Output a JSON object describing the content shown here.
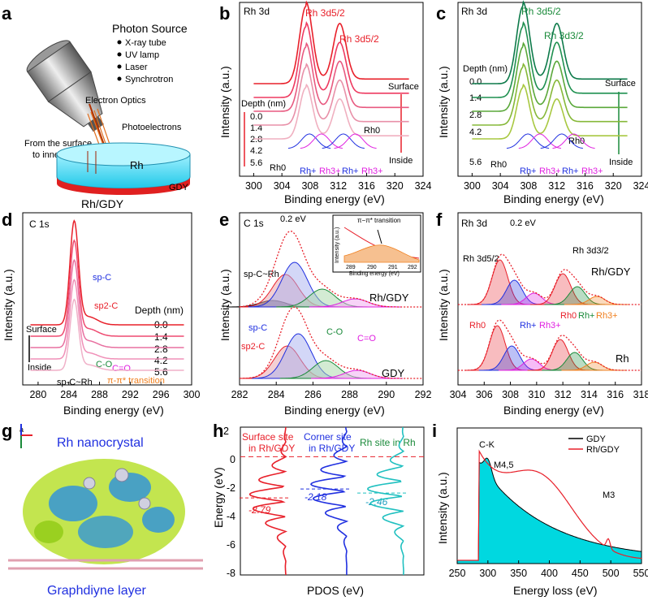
{
  "colors": {
    "red": "#e8202a",
    "pink": "#e8407a",
    "magenta": "#e020e0",
    "blue": "#2030e0",
    "green": "#1a8a3a",
    "darkgreen": "#0d7a4a",
    "orange": "#f08020",
    "cyan": "#20c0c0",
    "fill_cyan": "#00d8e0",
    "gdy_fill": "#00e0e8"
  },
  "panels": {
    "a": {
      "label": "a",
      "source_title": "Photon Source",
      "sources": [
        "X-ray tube",
        "UV lamp",
        "Laser",
        "Synchrotron"
      ],
      "optics": "Electron Optics",
      "photoelectrons": "Photoelectrons",
      "surface_note_1": "From the surface",
      "surface_note_2": "to inner part",
      "rh": "Rh",
      "gdy": "GDY",
      "caption": "Rh/GDY"
    },
    "b": {
      "label": "b",
      "corner_title": "Rh 3d",
      "peak1": "Rh 3d5/2",
      "peak2": "Rh 3d5/2",
      "depth_title": "Depth (nm)",
      "depths": [
        "0.0",
        "1.4",
        "2.8",
        "4.2",
        "5.6"
      ],
      "surface": "Surface",
      "inside": "Inside",
      "rh0_left": "Rh0",
      "rh0_right": "Rh0",
      "components": [
        "Rh+",
        "Rh3+",
        "Rh+",
        "Rh3+"
      ]
    },
    "c": {
      "label": "c",
      "corner_title": "Rh 3d",
      "peak1": "Rh 3d5/2",
      "peak2": "Rh 3d3/2",
      "depth_title": "Depth (nm)",
      "depths": [
        "0.0",
        "1.4",
        "2.8",
        "4.2",
        "5.6"
      ],
      "surface": "Surface",
      "inside": "Inside",
      "rh0_left": "Rh0",
      "rh0_right": "Rh0",
      "components": [
        "Rh+",
        "Rh3+",
        "Rh+",
        "Rh3+"
      ]
    },
    "d": {
      "label": "d",
      "corner_title": "C 1s",
      "depth_title": "Depth (nm)",
      "depths": [
        "0.0",
        "1.4",
        "2.8",
        "4.2",
        "5.6"
      ],
      "surface": "Surface",
      "inside": "Inside",
      "sp_c": "sp-C",
      "sp2_c": "sp2-C",
      "c_o": "C-O",
      "c_eq_o": "C=O",
      "sp_c_rh": "sp-C~Rh",
      "pi_pi": "π-π* transition"
    },
    "e": {
      "label": "e",
      "corner_title": "C 1s",
      "shift": "0.2 eV",
      "inset_title": "π−π* transition",
      "inset_ylabel": "Intensity (a.u.)",
      "inset_xlabel": "Binding energy (eV)",
      "inset_ticks": [
        "289",
        "290",
        "291",
        "292"
      ],
      "sp_c_rh": "sp-C~Rh",
      "sp_c": "sp-C",
      "sp2_c": "sp2-C",
      "c_o": "C-O",
      "c_eq_o": "C=O",
      "upper_sample": "Rh/GDY",
      "lower_sample": "GDY"
    },
    "f": {
      "label": "f",
      "corner_title": "Rh 3d",
      "shift": "0.2 eV",
      "peak1": "Rh 3d5/2",
      "peak2": "Rh 3d3/2",
      "upper_sample": "Rh/GDY",
      "lower_sample": "Rh",
      "components": [
        "Rh0",
        "Rh+",
        "Rh3+",
        "Rh0",
        "Rh+",
        "Rh3+"
      ]
    },
    "g": {
      "label": "g",
      "axis_label": "a",
      "title": "Rh nanocrystal",
      "bottom": "Graphdiyne layer"
    },
    "h": {
      "label": "h",
      "site1": "Surface site in Rh/GDY",
      "site1_a": "Surface site",
      "site1_b": "in Rh/GDY",
      "site2_a": "Corner site",
      "site2_b": "in Rh/GDY",
      "site3": "Rh site in Rh",
      "ylabel": "Energy (eV)",
      "xlabel": "PDOS (eV)",
      "d_centers": [
        "-2.79",
        "-2.18",
        "-2.46"
      ],
      "yticks": [
        "2",
        "0",
        "-2",
        "-4",
        "-6",
        "-8"
      ]
    },
    "i": {
      "label": "i",
      "legend": [
        "GDY",
        "Rh/GDY"
      ],
      "ck": "C-K",
      "m45": "M4,5",
      "m3": "M3",
      "ylabel": "Intensity (a.u.)",
      "xlabel": "Energy loss (eV)"
    }
  },
  "chart_data": [
    {
      "panel": "b",
      "type": "line",
      "title": "Rh 3d",
      "xlabel": "Binding energy (eV)",
      "ylabel": "Intensity (a.u.)",
      "xlim": [
        298,
        324
      ],
      "xticks": [
        300,
        304,
        308,
        312,
        316,
        320,
        324
      ],
      "series": [
        {
          "name": "0.0",
          "peaks": [
            307.4,
            312.2
          ]
        },
        {
          "name": "1.4",
          "peaks": [
            307.4,
            312.2
          ]
        },
        {
          "name": "2.8",
          "peaks": [
            307.4,
            312.2
          ]
        },
        {
          "name": "4.2",
          "peaks": [
            307.4,
            312.2
          ]
        },
        {
          "name": "5.6",
          "peaks": [
            307.4,
            312.2
          ]
        }
      ]
    },
    {
      "panel": "c",
      "type": "line",
      "title": "Rh 3d",
      "xlabel": "Binding energy (eV)",
      "ylabel": "Intensity (a.u.)",
      "xlim": [
        298,
        324
      ],
      "xticks": [
        300,
        304,
        308,
        312,
        316,
        320,
        324
      ],
      "series": [
        {
          "name": "0.0",
          "peaks": [
            307.2,
            312.0
          ]
        },
        {
          "name": "1.4",
          "peaks": [
            307.2,
            312.0
          ]
        },
        {
          "name": "2.8",
          "peaks": [
            307.2,
            312.0
          ]
        },
        {
          "name": "4.2",
          "peaks": [
            307.2,
            312.0
          ]
        },
        {
          "name": "5.6",
          "peaks": [
            307.2,
            312.0
          ]
        }
      ]
    },
    {
      "panel": "d",
      "type": "line",
      "title": "C 1s",
      "xlabel": "Binding energy (eV)",
      "ylabel": "Intensity (a.u.)",
      "xlim": [
        278,
        300
      ],
      "xticks": [
        280,
        284,
        288,
        292,
        296,
        300
      ],
      "series": [
        {
          "name": "0.0",
          "peak": 284.7
        },
        {
          "name": "1.4",
          "peak": 284.7
        },
        {
          "name": "2.8",
          "peak": 284.7
        },
        {
          "name": "4.2",
          "peak": 284.7
        },
        {
          "name": "5.6",
          "peak": 284.7
        }
      ]
    },
    {
      "panel": "e",
      "type": "line",
      "title": "C 1s",
      "xlabel": "Binding energy (eV)",
      "ylabel": "Intensity (a.u.)",
      "xlim": [
        282,
        292
      ],
      "xticks": [
        282,
        284,
        286,
        288,
        290,
        292
      ],
      "series": [
        {
          "name": "Rh/GDY",
          "components": {
            "sp-C~Rh": 283.8,
            "sp2-C": 284.5,
            "sp-C": 285.0,
            "C-O": 286.5,
            "C=O": 288.3
          }
        },
        {
          "name": "GDY",
          "components": {
            "sp2-C": 284.6,
            "sp-C": 285.2,
            "C-O": 286.7,
            "C=O": 288.4
          }
        }
      ]
    },
    {
      "panel": "f",
      "type": "line",
      "title": "Rh 3d",
      "xlabel": "Binding energy (eV)",
      "ylabel": "Intensity (a.u.)",
      "xlim": [
        304,
        318
      ],
      "xticks": [
        304,
        306,
        308,
        310,
        312,
        314,
        316,
        318
      ],
      "series": [
        {
          "name": "Rh/GDY",
          "components": {
            "Rh0": 307.2,
            "Rh+": 308.3,
            "Rh3+": 309.8
          }
        },
        {
          "name": "Rh",
          "components": {
            "Rh0": 307.0,
            "Rh+": 308.1,
            "Rh3+": 309.6
          }
        }
      ]
    },
    {
      "panel": "h",
      "type": "line",
      "ylabel": "Energy (eV)",
      "xlabel": "PDOS (eV)",
      "ylim": [
        -8,
        2
      ],
      "series": [
        {
          "name": "Surface site in Rh/GDY",
          "d_band_center": -2.79
        },
        {
          "name": "Corner site in Rh/GDY",
          "d_band_center": -2.18
        },
        {
          "name": "Rh site in Rh",
          "d_band_center": -2.46
        }
      ]
    },
    {
      "panel": "i",
      "type": "area",
      "xlabel": "Energy loss (eV)",
      "ylabel": "Intensity (a.u.)",
      "xlim": [
        250,
        550
      ],
      "xticks": [
        250,
        300,
        350,
        400,
        450,
        500,
        550
      ],
      "series": [
        {
          "name": "GDY",
          "edge": 285
        },
        {
          "name": "Rh/GDY",
          "edge": 285,
          "features": {
            "M4,5": 310,
            "M3": 496
          }
        }
      ]
    }
  ]
}
